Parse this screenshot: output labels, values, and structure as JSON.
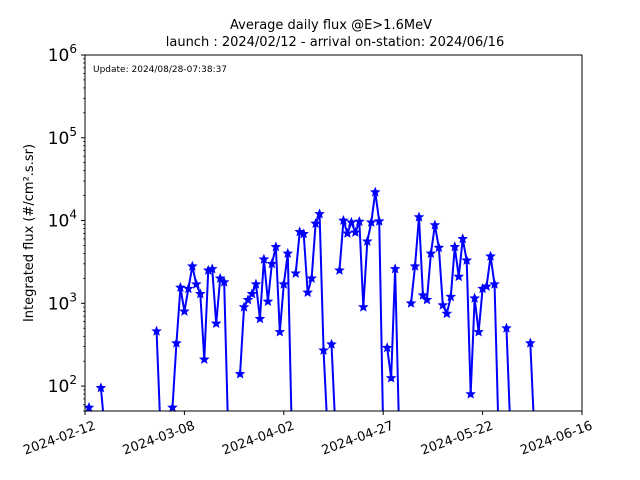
{
  "chart_data": {
    "type": "line",
    "title": "Average daily flux @E>1.6MeV",
    "subtitle": "launch : 2024/02/12 - arrival on-station: 2024/06/16",
    "annotation": "Update: 2024/08/28-07:38:37",
    "xlabel": "",
    "ylabel": "Integrated flux (#/cm².s.sr)",
    "yscale": "log",
    "xlim": [
      "2024-02-12",
      "2024-06-16"
    ],
    "ylim": [
      50,
      1000000
    ],
    "xticks": [
      "2024-02-12",
      "2024-03-08",
      "2024-04-02",
      "2024-04-27",
      "2024-05-22",
      "2024-06-16"
    ],
    "yticks": [
      {
        "value": 100,
        "base": "10",
        "exp": "2"
      },
      {
        "value": 1000,
        "base": "10",
        "exp": "3"
      },
      {
        "value": 10000,
        "base": "10",
        "exp": "4"
      },
      {
        "value": 100000,
        "base": "10",
        "exp": "5"
      },
      {
        "value": 1000000,
        "base": "10",
        "exp": "6"
      }
    ],
    "grid": false,
    "color": "#0000ff",
    "marker": "star",
    "series": [
      {
        "name": "",
        "points": [
          [
            "2024-02-13",
            55
          ],
          [
            "2024-02-14",
            null
          ],
          [
            "2024-02-16",
            95
          ],
          [
            "2024-02-17",
            null
          ],
          [
            "2024-03-01",
            460
          ],
          [
            "2024-03-02",
            null
          ],
          [
            "2024-03-05",
            55
          ],
          [
            "2024-03-06",
            330
          ],
          [
            "2024-03-07",
            1550
          ],
          [
            "2024-03-08",
            800
          ],
          [
            "2024-03-09",
            1500
          ],
          [
            "2024-03-10",
            2800
          ],
          [
            "2024-03-11",
            1700
          ],
          [
            "2024-03-12",
            1300
          ],
          [
            "2024-03-13",
            210
          ],
          [
            "2024-03-14",
            2500
          ],
          [
            "2024-03-15",
            2600
          ],
          [
            "2024-03-16",
            570
          ],
          [
            "2024-03-17",
            2000
          ],
          [
            "2024-03-18",
            1800
          ],
          [
            "2024-03-19",
            null
          ],
          [
            "2024-03-22",
            140
          ],
          [
            "2024-03-23",
            900
          ],
          [
            "2024-03-24",
            1100
          ],
          [
            "2024-03-25",
            1300
          ],
          [
            "2024-03-26",
            1700
          ],
          [
            "2024-03-27",
            650
          ],
          [
            "2024-03-28",
            3400
          ],
          [
            "2024-03-29",
            1050
          ],
          [
            "2024-03-30",
            3000
          ],
          [
            "2024-03-31",
            4800
          ],
          [
            "2024-04-01",
            450
          ],
          [
            "2024-04-02",
            1700
          ],
          [
            "2024-04-03",
            4000
          ],
          [
            "2024-04-04",
            null
          ],
          [
            "2024-04-05",
            2300
          ],
          [
            "2024-04-06",
            7300
          ],
          [
            "2024-04-07",
            6900
          ],
          [
            "2024-04-08",
            1350
          ],
          [
            "2024-04-09",
            2000
          ],
          [
            "2024-04-10",
            9200
          ],
          [
            "2024-04-11",
            12000
          ],
          [
            "2024-04-12",
            270
          ],
          [
            "2024-04-13",
            null
          ],
          [
            "2024-04-14",
            320
          ],
          [
            "2024-04-15",
            null
          ],
          [
            "2024-04-16",
            2500
          ],
          [
            "2024-04-17",
            10000
          ],
          [
            "2024-04-18",
            7000
          ],
          [
            "2024-04-19",
            9500
          ],
          [
            "2024-04-20",
            7200
          ],
          [
            "2024-04-21",
            9700
          ],
          [
            "2024-04-22",
            900
          ],
          [
            "2024-04-23",
            5600
          ],
          [
            "2024-04-24",
            9500
          ],
          [
            "2024-04-25",
            22000
          ],
          [
            "2024-04-26",
            9800
          ],
          [
            "2024-04-27",
            null
          ],
          [
            "2024-04-28",
            290
          ],
          [
            "2024-04-29",
            125
          ],
          [
            "2024-04-30",
            2600
          ],
          [
            "2024-05-01",
            null
          ],
          [
            "2024-05-04",
            1000
          ],
          [
            "2024-05-05",
            2800
          ],
          [
            "2024-05-06",
            11000
          ],
          [
            "2024-05-07",
            1250
          ],
          [
            "2024-05-08",
            1100
          ],
          [
            "2024-05-09",
            4000
          ],
          [
            "2024-05-10",
            8800
          ],
          [
            "2024-05-11",
            4700
          ],
          [
            "2024-05-12",
            950
          ],
          [
            "2024-05-13",
            750
          ],
          [
            "2024-05-14",
            1200
          ],
          [
            "2024-05-15",
            4800
          ],
          [
            "2024-05-16",
            2100
          ],
          [
            "2024-05-17",
            6000
          ],
          [
            "2024-05-18",
            3300
          ],
          [
            "2024-05-19",
            80
          ],
          [
            "2024-05-20",
            1150
          ],
          [
            "2024-05-21",
            450
          ],
          [
            "2024-05-22",
            1500
          ],
          [
            "2024-05-23",
            1600
          ],
          [
            "2024-05-24",
            3700
          ],
          [
            "2024-05-25",
            1700
          ],
          [
            "2024-05-26",
            null
          ],
          [
            "2024-05-28",
            500
          ],
          [
            "2024-05-29",
            null
          ],
          [
            "2024-06-03",
            330
          ],
          [
            "2024-06-04",
            null
          ]
        ]
      }
    ]
  }
}
